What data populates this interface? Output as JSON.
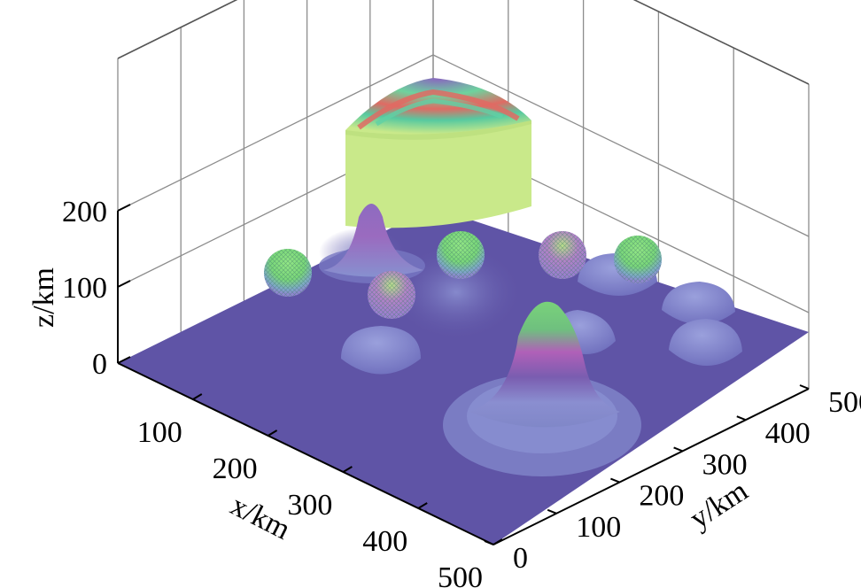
{
  "chart_data": {
    "type": "surface3d",
    "title": "",
    "xlabel": "x/km",
    "ylabel": "y/km",
    "zlabel": "z/km",
    "xlim": [
      0,
      500
    ],
    "ylim": [
      0,
      500
    ],
    "zlim": [
      0,
      200
    ],
    "xticks": [
      "100",
      "200",
      "300",
      "400",
      "500"
    ],
    "yticks": [
      "0",
      "100",
      "200",
      "300",
      "400",
      "500"
    ],
    "zticks": [
      "0",
      "100",
      "200"
    ],
    "grid": true,
    "colors": {
      "base": "#5f54a6",
      "mound": "#7f84c8",
      "peak": "#8a5fb4",
      "peak_top": "#79d27a",
      "sphere": "#84dc7a",
      "sphere_pink": "#b77fc6",
      "cylinder": "#c9e98a",
      "cylinder_top_red": "#e06a63",
      "cylinder_top_green": "#72d59a"
    },
    "objects": [
      {
        "kind": "cylinder",
        "x": 80,
        "y": 400,
        "z_top": 200
      },
      {
        "kind": "gaussian",
        "x": 100,
        "y": 260,
        "z_top": 190
      },
      {
        "kind": "gaussian",
        "x": 380,
        "y": 240,
        "z_top": 200
      },
      {
        "kind": "sphere",
        "x": 60,
        "y": 140,
        "z": 120
      },
      {
        "kind": "sphere",
        "x": 180,
        "y": 220,
        "z": 110
      },
      {
        "kind": "sphere",
        "x": 60,
        "y": 330,
        "z": 120
      },
      {
        "kind": "sphere",
        "x": 130,
        "y": 380,
        "z": 110
      },
      {
        "kind": "sphere",
        "x": 140,
        "y": 470,
        "z": 110
      },
      {
        "kind": "hemisphere",
        "x": 290,
        "y": 130
      },
      {
        "kind": "hemisphere",
        "x": 270,
        "y": 330
      },
      {
        "kind": "hemisphere",
        "x": 160,
        "y": 400
      },
      {
        "kind": "hemisphere",
        "x": 260,
        "y": 460
      },
      {
        "kind": "hemisphere",
        "x": 340,
        "y": 460
      }
    ]
  }
}
